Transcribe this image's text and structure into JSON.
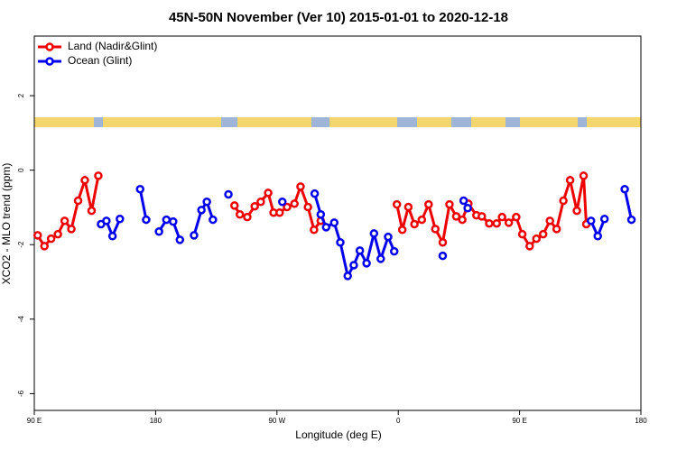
{
  "chart_data": {
    "type": "line",
    "title": "45N-50N November (Ver 10)   2015-01-01 to 2020-12-18",
    "xlabel": "Longitude (deg E)",
    "ylabel": "XCO2 - MLO trend (ppm)",
    "xlim": [
      90,
      540
    ],
    "ylim": [
      -6.45,
      3.6
    ],
    "xticks": [
      {
        "value": 90,
        "label": "90 E"
      },
      180,
      {
        "value": 270,
        "label": "90 W"
      },
      {
        "value": 360,
        "label": "0"
      },
      {
        "value": 450,
        "label": "90 E"
      },
      {
        "value": 540,
        "label": "180"
      }
    ],
    "yticks": [
      -6,
      -4,
      -2,
      0,
      2
    ],
    "legend": "top-left",
    "series": [
      {
        "name": "Land (Nadir&Glint)",
        "color": "#ee0000",
        "x": [
          92.5,
          97.5,
          102.5,
          107.5,
          112.5,
          117.5,
          122.5,
          127.5,
          132.5,
          137.5,
          null,
          238.5,
          242.5,
          248,
          253.5,
          258,
          263.5,
          267.5,
          272,
          277.5,
          283,
          287.5,
          293,
          297.5,
          302.5,
          null,
          359,
          363,
          367.5,
          372,
          377.5,
          382.5,
          387.5,
          393,
          398,
          403,
          407.5,
          412,
          418,
          422,
          427.5,
          433,
          437,
          442,
          447.5,
          452,
          457.5,
          462.5,
          467.5,
          472.5,
          477.5,
          482.5,
          487.5,
          492.5,
          497.5,
          499.5
        ],
        "values": [
          -1.75,
          -2.04,
          -1.84,
          -1.72,
          -1.36,
          -1.58,
          -0.82,
          -0.27,
          -1.09,
          -0.15,
          null,
          -0.95,
          -1.19,
          -1.26,
          -0.97,
          -0.85,
          -0.61,
          -1.14,
          -1.14,
          -0.99,
          -0.9,
          -0.44,
          -0.99,
          -1.6,
          -1.36,
          null,
          -0.92,
          -1.6,
          -0.99,
          -1.45,
          -1.33,
          -0.92,
          -1.58,
          -1.94,
          -0.92,
          -1.24,
          -1.33,
          -0.9,
          -1.21,
          -1.24,
          -1.43,
          -1.43,
          -1.26,
          -1.41,
          -1.26,
          -1.72,
          -2.04,
          -1.84,
          -1.72,
          -1.36,
          -1.58,
          -0.82,
          -0.27,
          -1.09,
          -0.15,
          -1.45
        ]
      },
      {
        "name": "Ocean (Glint)",
        "color": "#0000ee",
        "x": [
          139.5,
          143.5,
          148,
          153.5,
          null,
          168.5,
          173,
          null,
          182.5,
          188,
          193,
          198,
          null,
          208.5,
          214,
          218,
          222.5,
          null,
          234,
          null,
          274,
          null,
          298,
          302.5,
          306.5,
          312.5,
          317,
          322.5,
          327,
          331.5,
          336.5,
          342,
          347,
          352.5,
          357,
          null,
          393,
          null,
          408.5,
          411.5,
          null,
          503,
          508,
          513,
          null,
          528,
          533
        ],
        "values": [
          -1.45,
          -1.36,
          -1.77,
          -1.31,
          null,
          -0.51,
          -1.33,
          null,
          -1.65,
          -1.33,
          -1.38,
          -1.87,
          null,
          -1.75,
          -1.07,
          -0.85,
          -1.33,
          null,
          -0.65,
          null,
          -0.85,
          null,
          -0.63,
          -1.19,
          -1.53,
          -1.41,
          -1.94,
          -2.84,
          -2.55,
          -2.16,
          -2.5,
          -1.7,
          -2.38,
          -1.79,
          -2.18,
          null,
          -2.3,
          null,
          -0.82,
          -1.02,
          null,
          -1.36,
          -1.77,
          -1.31,
          null,
          -0.51,
          -1.33
        ]
      }
    ]
  }
}
